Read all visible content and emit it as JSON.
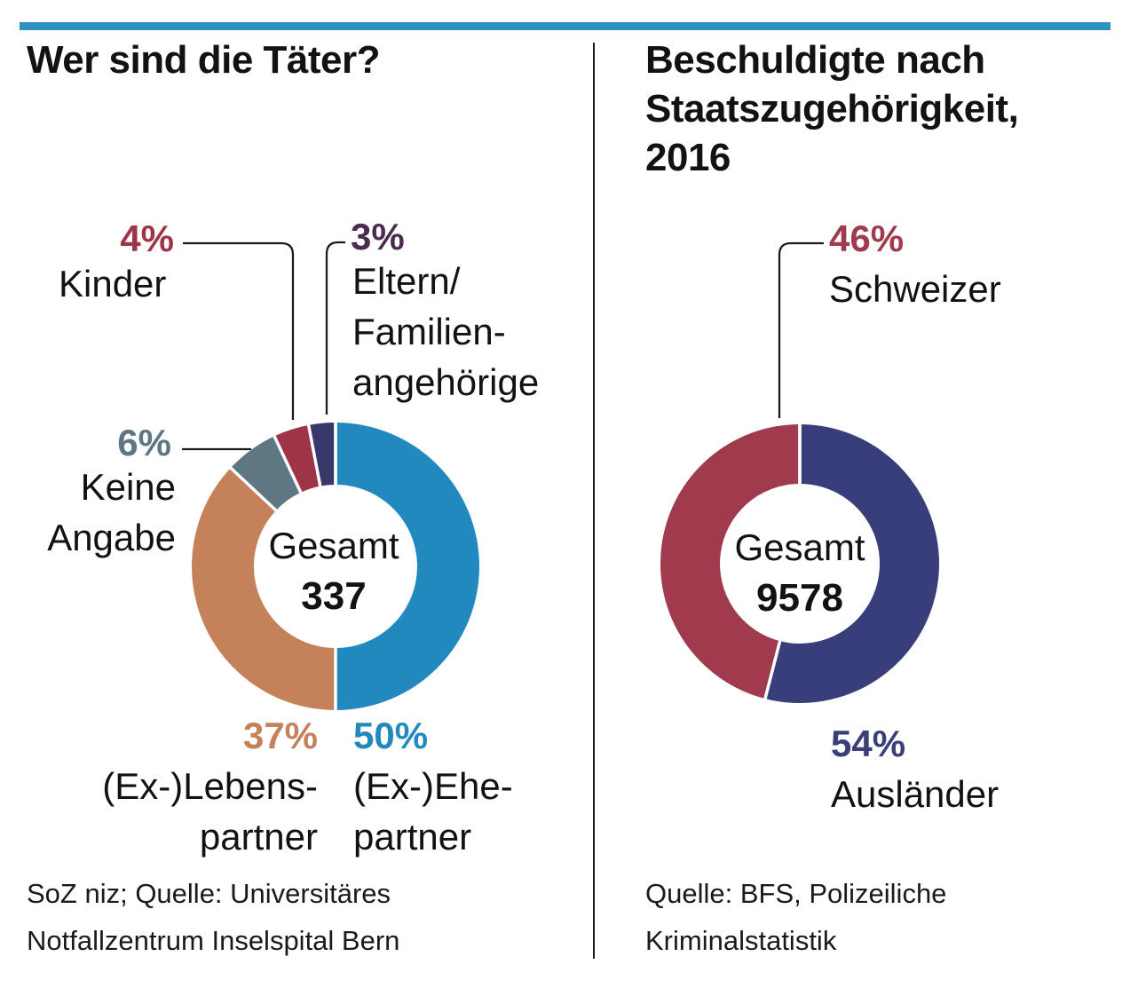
{
  "page": {
    "top_bar_color": "#2E91BF",
    "divider_color": "#1b1b1b",
    "leader_line_color": "#1b1b1b"
  },
  "left_chart": {
    "title": "Wer sind die Täter?",
    "center": {
      "label": "Gesamt",
      "value": "337"
    },
    "labels": {
      "kinder_pct": "4%",
      "kinder": "Kinder",
      "eltern_pct": "3%",
      "eltern_l1": "Eltern/",
      "eltern_l2": "Familien-",
      "eltern_l3": "angehörige",
      "keine_pct": "6%",
      "keine_l1": "Keine",
      "keine_l2": "Angabe",
      "lebens_pct": "37%",
      "lebens_l1": "(Ex-)Lebens-",
      "lebens_l2": "partner",
      "ehe_pct": "50%",
      "ehe_l1": "(Ex-)Ehe-",
      "ehe_l2": "partner"
    },
    "label_colors": {
      "kinder_pct": "#9E3448",
      "eltern_pct": "#4B2B4E",
      "keine_pct": "#5D7883",
      "lebens_pct": "#C5825A",
      "ehe_pct": "#2289BE"
    },
    "source_l1": "SoZ niz; Quelle: Universitäres",
    "source_l2": "Notfallzentrum Inselspital Bern"
  },
  "right_chart": {
    "title_l1": "Beschuldigte nach",
    "title_l2": "Staatszugehörigkeit,",
    "title_l3": "2016",
    "center": {
      "label": "Gesamt",
      "value": "9578"
    },
    "labels": {
      "schweizer_pct": "46%",
      "schweizer": "Schweizer",
      "auslaender_pct": "54%",
      "auslaender": "Ausländer"
    },
    "label_colors": {
      "schweizer_pct": "#A03A4D",
      "auslaender_pct": "#3A3F78"
    },
    "source_l1": "Quelle: BFS, Polizeiliche",
    "source_l2": "Kriminalstatistik"
  },
  "chart_data": [
    {
      "type": "pie",
      "variant": "donut",
      "title": "Wer sind die Täter?",
      "center_label": "Gesamt",
      "total": 337,
      "start_angle_deg": 0,
      "clockwise": true,
      "slices": [
        {
          "label": "(Ex-)Ehepartner",
          "value_pct": 50,
          "color": "#2289BE"
        },
        {
          "label": "(Ex-)Lebenspartner",
          "value_pct": 37,
          "color": "#C5825A"
        },
        {
          "label": "Keine Angabe",
          "value_pct": 6,
          "color": "#5D7883"
        },
        {
          "label": "Kinder",
          "value_pct": 4,
          "color": "#9E3448"
        },
        {
          "label": "Eltern/Familienangehörige",
          "value_pct": 3,
          "color": "#38386A"
        }
      ],
      "source": "SoZ niz; Quelle: Universitäres Notfallzentrum Inselspital Bern"
    },
    {
      "type": "pie",
      "variant": "donut",
      "title": "Beschuldigte nach Staatszugehörigkeit, 2016",
      "center_label": "Gesamt",
      "total": 9578,
      "start_angle_deg": 0,
      "clockwise": true,
      "slices": [
        {
          "label": "Ausländer",
          "value_pct": 54,
          "color": "#383E79"
        },
        {
          "label": "Schweizer",
          "value_pct": 46,
          "color": "#A03A4D"
        }
      ],
      "source": "Quelle: BFS, Polizeiliche Kriminalstatistik"
    }
  ]
}
